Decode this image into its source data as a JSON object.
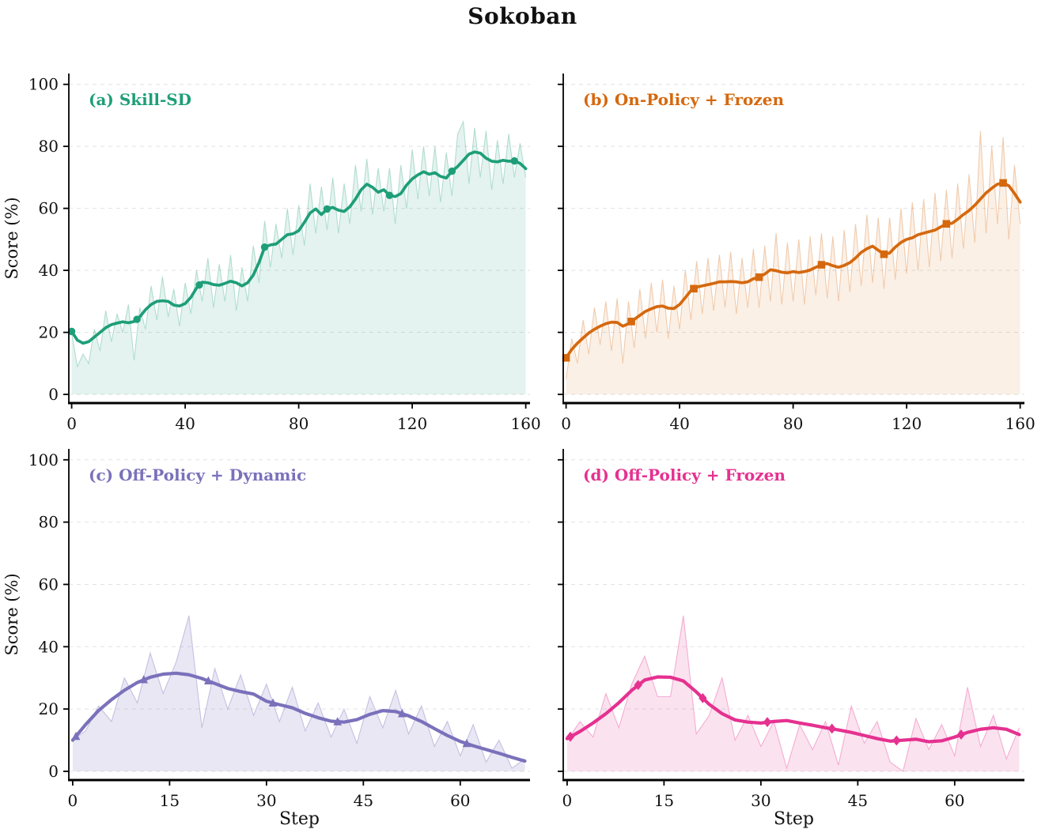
{
  "title": "Sokoban",
  "axis": {
    "ylabel": "Score (%)",
    "xlabel": "Step",
    "yticks": [
      0,
      20,
      40,
      60,
      80,
      100
    ],
    "ylim": [
      -2.8,
      103.5
    ],
    "grid_color": "#e2e2e2",
    "text_color": "#111111",
    "spine_color": "#000000"
  },
  "chart_data": [
    {
      "id": "a",
      "type": "line",
      "label": "(a) Skill-SD",
      "color": "#1e9e78",
      "fill_opacity": 0.12,
      "raw_opacity": 0.3,
      "marker": "circle",
      "xticks": [
        0,
        40,
        80,
        120,
        160
      ],
      "xlim": [
        -1,
        161.5
      ],
      "show_yticklabels": true,
      "show_ylabel": true,
      "show_xlabel": false,
      "smooth": {
        "start": 0,
        "step": 2,
        "values": [
          20.3,
          17.5,
          16.5,
          17.0,
          18.5,
          20.0,
          21.5,
          22.5,
          23.0,
          23.4,
          23.1,
          23.5,
          25.0,
          27.3,
          29.0,
          30.0,
          30.2,
          30.0,
          28.8,
          28.5,
          29.3,
          31.3,
          34.3,
          36.2,
          36.0,
          35.4,
          35.2,
          35.8,
          36.5,
          36.0,
          35.0,
          36.0,
          38.5,
          42.5,
          47.5,
          48.2,
          48.5,
          50.0,
          51.5,
          51.8,
          52.8,
          55.5,
          58.5,
          59.8,
          58.0,
          59.8,
          60.3,
          59.4,
          59.0,
          60.5,
          63.0,
          66.0,
          67.8,
          66.8,
          65.2,
          66.0,
          64.2,
          63.8,
          64.8,
          67.5,
          69.5,
          70.8,
          71.8,
          71.0,
          71.5,
          70.3,
          69.8,
          72.0,
          73.5,
          75.5,
          77.5,
          78.2,
          77.8,
          76.2,
          75.2,
          75.0,
          75.5,
          75.2,
          75.3,
          74.5,
          72.8
        ]
      },
      "raw": {
        "start": 0,
        "step": 2,
        "values": [
          20,
          9,
          13,
          10,
          21,
          14,
          27,
          17,
          26,
          20,
          29,
          11,
          28,
          21,
          35,
          24,
          38,
          25,
          34,
          22,
          36,
          26,
          40,
          30,
          44,
          28,
          42,
          30,
          45,
          27,
          41,
          30,
          48,
          36,
          56,
          41,
          55,
          44,
          60,
          45,
          61,
          48,
          68,
          52,
          67,
          53,
          70,
          52,
          68,
          55,
          74,
          59,
          76,
          58,
          73,
          59,
          73,
          55,
          74,
          60,
          79,
          63,
          80,
          64,
          80,
          62,
          78,
          64,
          84,
          88,
          68,
          86,
          70,
          85,
          66,
          82,
          68,
          84,
          70,
          81,
          70
        ]
      },
      "markers": {
        "x": [
          0,
          23,
          45,
          68,
          90,
          112,
          134,
          156
        ],
        "y": [
          20.3,
          24.2,
          35.3,
          47.5,
          59.8,
          64.2,
          72.0,
          75.3
        ]
      }
    },
    {
      "id": "b",
      "type": "line",
      "label": "(b) On-Policy + Frozen",
      "color": "#d5680e",
      "fill_opacity": 0.1,
      "raw_opacity": 0.3,
      "marker": "square",
      "xticks": [
        0,
        40,
        80,
        120,
        160
      ],
      "xlim": [
        -1,
        161.5
      ],
      "show_yticklabels": false,
      "show_ylabel": false,
      "show_xlabel": false,
      "smooth": {
        "start": 0,
        "step": 2,
        "values": [
          11.8,
          14.5,
          16.5,
          18.2,
          19.8,
          21.0,
          22.0,
          22.8,
          23.3,
          23.2,
          22.0,
          22.8,
          24.2,
          25.5,
          26.8,
          27.6,
          28.3,
          28.5,
          27.8,
          27.7,
          29.0,
          31.2,
          33.5,
          34.6,
          35.0,
          35.4,
          35.8,
          36.3,
          36.3,
          36.4,
          36.3,
          36.0,
          36.3,
          37.3,
          37.8,
          38.8,
          40.2,
          39.9,
          39.4,
          39.2,
          39.6,
          39.3,
          39.6,
          40.1,
          41.0,
          41.8,
          42.2,
          41.5,
          41.0,
          41.6,
          42.5,
          44.0,
          45.8,
          47.0,
          47.8,
          46.5,
          45.2,
          45.6,
          47.5,
          49.0,
          50.0,
          50.5,
          51.5,
          52.0,
          52.5,
          53.0,
          54.0,
          55.0,
          55.2,
          56.5,
          58.0,
          59.3,
          61.0,
          63.0,
          65.0,
          66.5,
          67.8,
          68.2,
          67.3,
          64.8,
          62.0
        ]
      },
      "raw": {
        "start": 0,
        "step": 2,
        "values": [
          5,
          18,
          10,
          24,
          13,
          28,
          16,
          30,
          14,
          31,
          10,
          30,
          15,
          34,
          18,
          36,
          20,
          37,
          18,
          35,
          21,
          40,
          24,
          43,
          26,
          44,
          27,
          45,
          28,
          46,
          26,
          44,
          28,
          47,
          28,
          48,
          30,
          52,
          29,
          49,
          30,
          50,
          29,
          51,
          32,
          52,
          31,
          51,
          30,
          53,
          33,
          55,
          35,
          58,
          36,
          57,
          34,
          57,
          37,
          60,
          39,
          62,
          40,
          63,
          41,
          65,
          43,
          66,
          44,
          68,
          47,
          71,
          49,
          85,
          52,
          80,
          55,
          83,
          50,
          74,
          55
        ]
      },
      "markers": {
        "x": [
          0,
          23,
          45,
          68,
          90,
          112,
          134,
          154
        ],
        "y": [
          11.8,
          23.5,
          34.1,
          37.8,
          41.8,
          45.2,
          55.0,
          68.2
        ]
      }
    },
    {
      "id": "c",
      "type": "line",
      "label": "(c) Off-Policy + Dynamic",
      "color": "#7a71bb",
      "fill_opacity": 0.17,
      "raw_opacity": 0.38,
      "marker": "triangle",
      "xticks": [
        0,
        15,
        30,
        45,
        60
      ],
      "xlim": [
        -0.6,
        70.8
      ],
      "show_yticklabels": true,
      "show_ylabel": true,
      "show_xlabel": true,
      "smooth": {
        "start": 0,
        "step": 2,
        "values": [
          10.0,
          15.0,
          19.5,
          23.0,
          26.0,
          28.5,
          30.2,
          31.2,
          31.5,
          31.0,
          29.8,
          28.2,
          26.6,
          25.6,
          24.8,
          22.5,
          21.4,
          20.4,
          18.6,
          17.2,
          16.1,
          15.8,
          16.6,
          18.3,
          19.5,
          19.2,
          17.8,
          16.0,
          13.7,
          11.5,
          9.6,
          8.2,
          7.0,
          5.8,
          4.5,
          3.3
        ]
      },
      "raw": {
        "start": 0,
        "step": 2,
        "values": [
          10,
          13,
          21,
          16,
          30,
          22,
          38,
          25,
          35,
          50,
          14,
          33,
          20,
          31,
          18,
          28,
          16,
          27,
          13,
          22,
          11,
          20,
          9,
          24,
          14,
          26,
          12,
          21,
          8,
          16,
          5,
          15,
          3,
          10,
          1,
          4
        ]
      },
      "markers": {
        "x": [
          0.5,
          11,
          21,
          31,
          41,
          51,
          61
        ],
        "y": [
          11.2,
          29.4,
          29.0,
          21.9,
          15.9,
          18.5,
          8.9
        ]
      }
    },
    {
      "id": "d",
      "type": "line",
      "label": "(d) Off-Policy + Frozen",
      "color": "#e53190",
      "fill_opacity": 0.14,
      "raw_opacity": 0.35,
      "marker": "diamond",
      "xticks": [
        0,
        15,
        30,
        45,
        60
      ],
      "xlim": [
        -0.6,
        70.8
      ],
      "show_yticklabels": false,
      "show_ylabel": false,
      "show_xlabel": true,
      "smooth": {
        "start": 0,
        "step": 2,
        "values": [
          10.5,
          12.8,
          15.5,
          18.5,
          22.0,
          26.0,
          29.3,
          30.3,
          30.2,
          29.0,
          25.5,
          21.5,
          18.5,
          16.5,
          15.8,
          15.5,
          16.0,
          16.3,
          15.5,
          14.8,
          14.0,
          13.3,
          12.5,
          11.5,
          10.5,
          9.7,
          10.0,
          10.3,
          9.5,
          9.8,
          11.0,
          12.5,
          13.5,
          14.0,
          13.5,
          11.8
        ]
      },
      "raw": {
        "start": 0,
        "step": 2,
        "values": [
          10,
          16,
          11,
          25,
          14,
          28,
          37,
          24,
          24,
          50,
          12,
          18,
          30,
          10,
          18,
          8,
          16,
          1,
          15,
          7,
          16,
          2,
          21,
          9,
          16,
          3,
          0,
          17,
          7,
          15,
          5,
          27,
          8,
          18,
          4,
          14
        ]
      },
      "markers": {
        "x": [
          0.5,
          11,
          21,
          31,
          41,
          51,
          61
        ],
        "y": [
          11.1,
          27.7,
          23.5,
          15.8,
          13.7,
          9.9,
          11.8
        ]
      }
    }
  ]
}
